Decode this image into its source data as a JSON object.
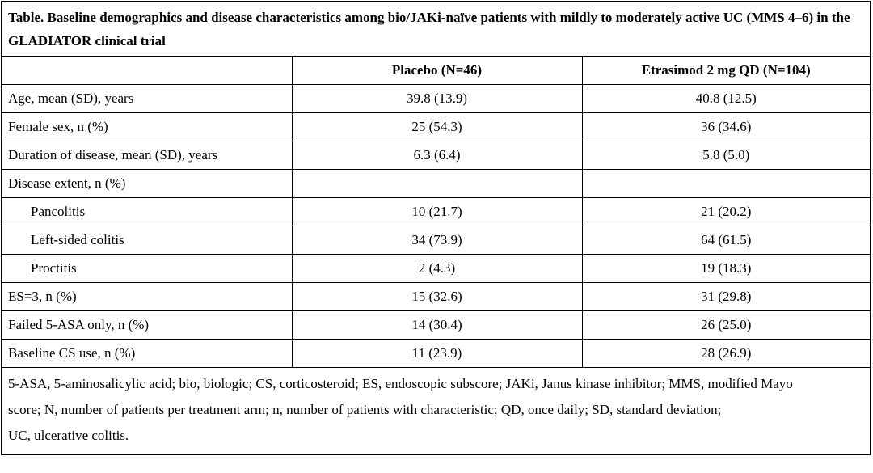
{
  "caption": "Table. Baseline demographics and disease characteristics among bio/JAKi-naïve patients with mildly to moderately active UC (MMS 4–6) in the GLADIATOR clinical trial",
  "columns": [
    "",
    "Placebo (N=46)",
    "Etrasimod 2 mg QD (N=104)"
  ],
  "rows": [
    {
      "label": "Age, mean (SD), years",
      "placebo": "39.8 (13.9)",
      "etrasimod": "40.8 (12.5)"
    },
    {
      "label": "Female sex, n (%)",
      "placebo": "25 (54.3)",
      "etrasimod": "36 (34.6)"
    },
    {
      "label": "Duration of disease, mean (SD), years",
      "placebo": "6.3 (6.4)",
      "etrasimod": "5.8 (5.0)"
    },
    {
      "label": "Disease extent, n (%)",
      "placebo": "",
      "etrasimod": ""
    },
    {
      "label": "Pancolitis",
      "placebo": "10 (21.7)",
      "etrasimod": "21 (20.2)"
    },
    {
      "label": "Left-sided colitis",
      "placebo": "34 (73.9)",
      "etrasimod": "64 (61.5)"
    },
    {
      "label": "Proctitis",
      "placebo": "2 (4.3)",
      "etrasimod": "19 (18.3)"
    },
    {
      "label": "ES=3, n (%)",
      "placebo": "15 (32.6)",
      "etrasimod": "31 (29.8)"
    },
    {
      "label": "Failed 5-ASA only, n (%)",
      "placebo": "14 (30.4)",
      "etrasimod": "26 (25.0)"
    },
    {
      "label": "Baseline CS use, n (%)",
      "placebo": "11 (23.9)",
      "etrasimod": "28 (26.9)"
    }
  ],
  "footnote": {
    "line1": "5-ASA, 5-aminosalicylic acid; bio, biologic; CS, corticosteroid; ES, endoscopic subscore; JAKi, Janus kinase inhibitor; MMS, modified Mayo",
    "line2": "score; N, number of patients per treatment arm; n, number of patients with characteristic; QD, once daily; SD, standard deviation;",
    "line3": "UC, ulcerative colitis."
  }
}
